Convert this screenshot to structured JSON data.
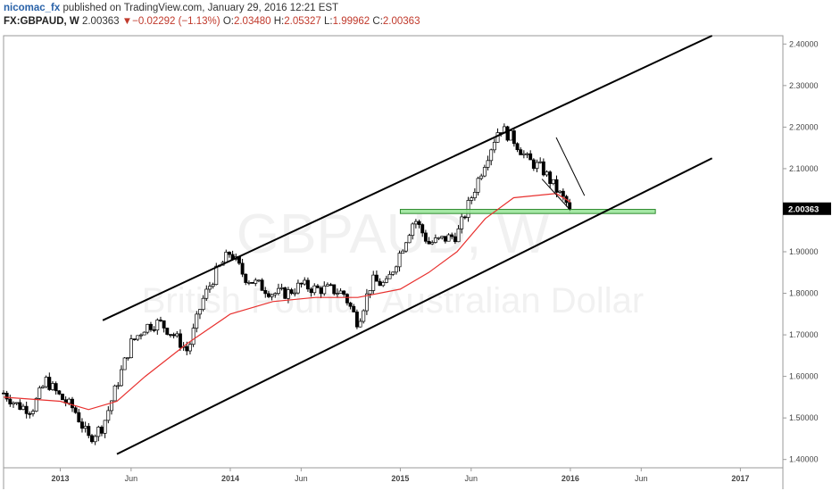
{
  "header": {
    "author": "nicomac_fx",
    "published_text": "published on TradingView.com, January 29, 2016 12:21 EST",
    "symbol": "FX:GBPAUD, W",
    "last": "2.00363",
    "change_arrow": "▼",
    "change": "−0.02292 (−1.13%)",
    "o_label": "O:",
    "o_value": "2.03480",
    "h_label": "H:",
    "h_value": "2.05327",
    "l_label": "L:",
    "l_value": "1.99962",
    "c_label": "C:",
    "c_value": "2.00363"
  },
  "watermark": {
    "symbol": "GBPAUD, W",
    "name": "British Pound / Australian Dollar"
  },
  "colors": {
    "candle_up": "#ffffff",
    "candle_down": "#000000",
    "ma": "#e8312f",
    "channel": "#000000",
    "zone_fill": "#9be59b",
    "zone_stroke": "#2e8b2e",
    "price_label_bg": "#000000"
  },
  "chart_data": {
    "type": "candlestick",
    "symbol": "FX:GBPAUD",
    "interval": "W",
    "last_price": 2.00363,
    "last_price_label": "2.00363",
    "y_ticks": [
      "1.40000",
      "1.50000",
      "1.60000",
      "1.70000",
      "1.80000",
      "1.90000",
      "2.00000",
      "2.10000",
      "2.20000",
      "2.30000",
      "2.40000"
    ],
    "y_tick_values": [
      1.4,
      1.5,
      1.6,
      1.7,
      1.8,
      1.9,
      2.0,
      2.1,
      2.2,
      2.3,
      2.4
    ],
    "ylim": [
      1.38,
      2.42
    ],
    "x_ticks": [
      "2013",
      "Jun",
      "2014",
      "Jun",
      "2015",
      "Jun",
      "2016",
      "Jun",
      "2017"
    ],
    "x_tick_dates": [
      "2013-01",
      "2013-06",
      "2014-01",
      "2014-06",
      "2015-01",
      "2015-06",
      "2016-01",
      "2016-06",
      "2017-01"
    ],
    "xlim": [
      "2012-09",
      "2017-04"
    ],
    "price_anchors": [
      [
        "2012-09",
        1.56
      ],
      [
        "2012-10",
        1.53
      ],
      [
        "2012-11",
        1.52
      ],
      [
        "2012-12",
        1.59
      ],
      [
        "2013-01",
        1.55
      ],
      [
        "2013-02",
        1.52
      ],
      [
        "2013-03",
        1.45
      ],
      [
        "2013-04",
        1.48
      ],
      [
        "2013-05",
        1.58
      ],
      [
        "2013-06",
        1.68
      ],
      [
        "2013-07",
        1.72
      ],
      [
        "2013-08",
        1.73
      ],
      [
        "2013-09",
        1.7
      ],
      [
        "2013-10",
        1.66
      ],
      [
        "2013-11",
        1.78
      ],
      [
        "2013-12",
        1.85
      ],
      [
        "2014-01",
        1.9
      ],
      [
        "2014-02",
        1.84
      ],
      [
        "2014-03",
        1.82
      ],
      [
        "2014-04",
        1.8
      ],
      [
        "2014-05",
        1.8
      ],
      [
        "2014-06",
        1.82
      ],
      [
        "2014-07",
        1.81
      ],
      [
        "2014-08",
        1.81
      ],
      [
        "2014-09",
        1.8
      ],
      [
        "2014-10",
        1.73
      ],
      [
        "2014-11",
        1.83
      ],
      [
        "2014-12",
        1.82
      ],
      [
        "2015-01",
        1.9
      ],
      [
        "2015-02",
        1.98
      ],
      [
        "2015-03",
        1.92
      ],
      [
        "2015-04",
        1.93
      ],
      [
        "2015-05",
        1.94
      ],
      [
        "2015-06",
        2.03
      ],
      [
        "2015-07",
        2.12
      ],
      [
        "2015-08",
        2.2
      ],
      [
        "2015-09",
        2.17
      ],
      [
        "2015-10",
        2.12
      ],
      [
        "2015-11",
        2.1
      ],
      [
        "2015-12",
        2.05
      ],
      [
        "2016-01",
        2.00363
      ]
    ],
    "moving_average": {
      "color": "#e8312f",
      "points": [
        [
          "2012-09",
          1.55
        ],
        [
          "2013-01",
          1.54
        ],
        [
          "2013-03",
          1.52
        ],
        [
          "2013-05",
          1.54
        ],
        [
          "2013-07",
          1.6
        ],
        [
          "2013-10",
          1.68
        ],
        [
          "2014-01",
          1.75
        ],
        [
          "2014-04",
          1.78
        ],
        [
          "2014-07",
          1.79
        ],
        [
          "2014-10",
          1.79
        ],
        [
          "2015-01",
          1.81
        ],
        [
          "2015-03",
          1.85
        ],
        [
          "2015-05",
          1.9
        ],
        [
          "2015-07",
          1.98
        ],
        [
          "2015-09",
          2.03
        ],
        [
          "2015-12",
          2.04
        ],
        [
          "2016-01",
          2.02
        ]
      ]
    },
    "annotations": {
      "channel_upper": [
        [
          "2013-04",
          1.735
        ],
        [
          "2016-11",
          2.42
        ]
      ],
      "channel_lower": [
        [
          "2013-05",
          1.413
        ],
        [
          "2016-11",
          2.125
        ]
      ],
      "falling_wedge_upper": [
        [
          "2015-12",
          2.175
        ],
        [
          "2016-02",
          2.035
        ]
      ],
      "falling_wedge_lower": [
        [
          "2015-11",
          2.075
        ],
        [
          "2016-01",
          2.0
        ]
      ],
      "support_zone": {
        "x": [
          "2015-01",
          "2016-07"
        ],
        "y": [
          1.992,
          2.002
        ]
      }
    }
  }
}
